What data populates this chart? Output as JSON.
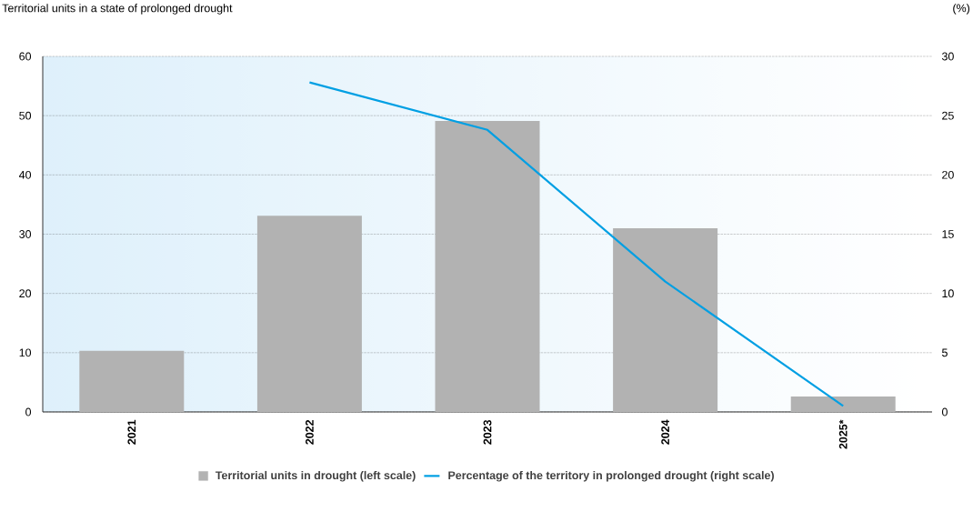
{
  "chart_data": {
    "type": "bar",
    "subtitle": "Territorial units in a state of prolonged drought",
    "y2label": "(%)",
    "categories": [
      "2021",
      "2022",
      "2023",
      "2024",
      "2025*"
    ],
    "series": [
      {
        "name": "Territorial units in drought (left scale)",
        "color": "#b2b2b2",
        "values": [
          10.3,
          33.1,
          49.1,
          31.0,
          2.6
        ]
      },
      {
        "name": "Percentage of the territory in prolonged drought (right scale)",
        "type": "line",
        "axis": "y2",
        "color": "#009fe3",
        "values": [
          null,
          27.8,
          23.8,
          11.0,
          0.5
        ]
      }
    ],
    "ylim": [
      0,
      60
    ],
    "yticks": [
      0,
      10,
      20,
      30,
      40,
      50,
      60
    ],
    "y2lim": [
      0,
      30
    ],
    "y2ticks": [
      0,
      5,
      10,
      15,
      20,
      25,
      30
    ],
    "grid": "y",
    "legend": "bottom"
  }
}
